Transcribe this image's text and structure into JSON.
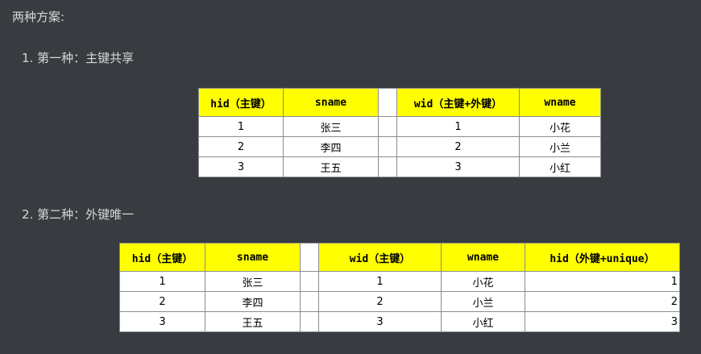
{
  "heading": "两种方案:",
  "schemes": [
    {
      "label": "1. 第一种：主键共享",
      "left_table": {
        "headers": [
          "hid（主键）",
          "sname"
        ],
        "rows": [
          [
            "1",
            "张三"
          ],
          [
            "2",
            "李四"
          ],
          [
            "3",
            "王五"
          ]
        ]
      },
      "right_table": {
        "headers": [
          "wid（主键+外键）",
          "wname"
        ],
        "rows": [
          [
            "1",
            "小花"
          ],
          [
            "2",
            "小兰"
          ],
          [
            "3",
            "小红"
          ]
        ]
      }
    },
    {
      "label": "2. 第二种：外键唯一",
      "left_table": {
        "headers": [
          "hid（主键）",
          "sname"
        ],
        "rows": [
          [
            "1",
            "张三"
          ],
          [
            "2",
            "李四"
          ],
          [
            "3",
            "王五"
          ]
        ]
      },
      "right_table": {
        "headers": [
          "wid（主键）",
          "wname",
          "hid（外键+unique）"
        ],
        "rows": [
          [
            "1",
            "小花",
            "1"
          ],
          [
            "2",
            "小兰",
            "2"
          ],
          [
            "3",
            "小红",
            "3"
          ]
        ]
      }
    }
  ],
  "colors": {
    "background": "#383c40",
    "header_fill": "#ffff00",
    "text": "#d6d8da"
  }
}
